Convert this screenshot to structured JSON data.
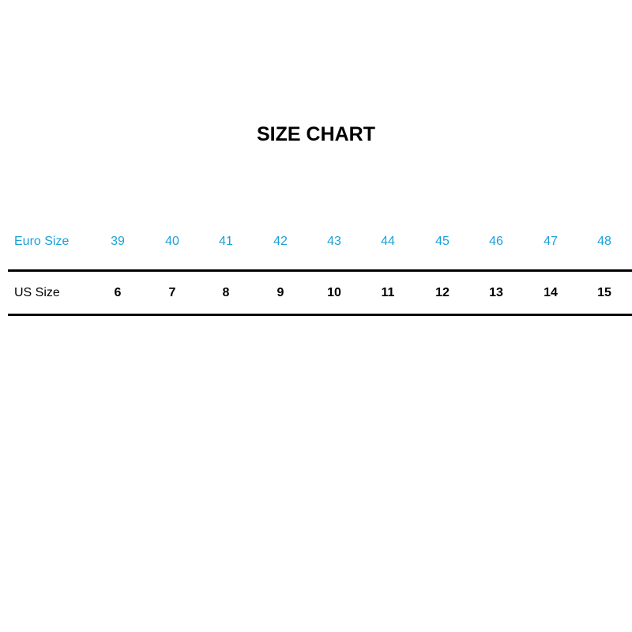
{
  "title": "SIZE CHART",
  "colors": {
    "euro": "#1ba1d8",
    "us": "#000000"
  },
  "table": {
    "rows": [
      {
        "label": "Euro Size",
        "values": [
          "39",
          "40",
          "41",
          "42",
          "43",
          "44",
          "45",
          "46",
          "47",
          "48"
        ]
      },
      {
        "label": "US Size",
        "values": [
          "6",
          "7",
          "8",
          "9",
          "10",
          "11",
          "12",
          "13",
          "14",
          "15"
        ]
      }
    ]
  }
}
